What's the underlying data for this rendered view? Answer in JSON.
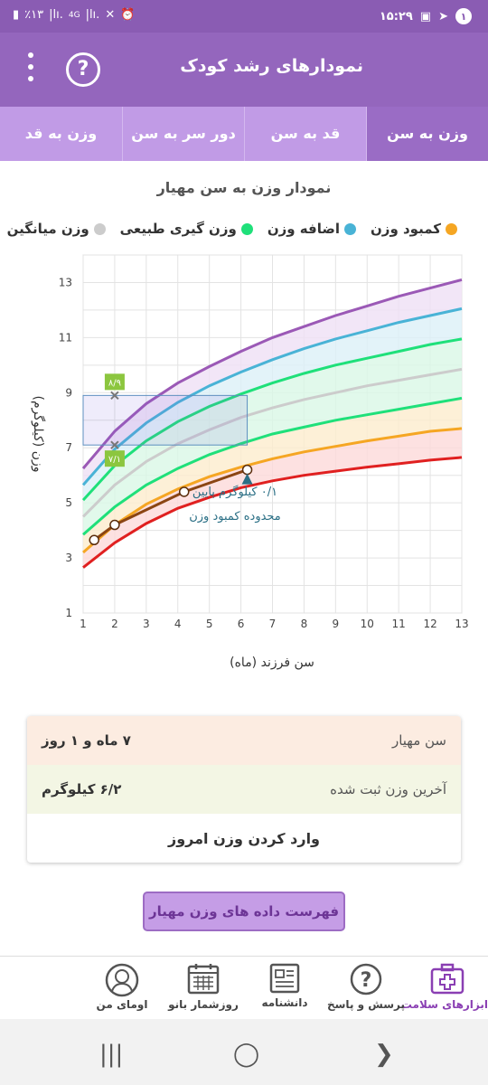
{
  "status_bar": {
    "time": "۱۵:۲۹",
    "notification_count": "۱",
    "battery": "٪۱۳",
    "network": "4G"
  },
  "app_bar": {
    "title": "نمودارهای رشد کودک",
    "help_symbol": "?"
  },
  "tabs": [
    {
      "label": "وزن به سن",
      "active": true
    },
    {
      "label": "قد به سن",
      "active": false
    },
    {
      "label": "دور سر به سن",
      "active": false
    },
    {
      "label": "وزن به قد",
      "active": false
    }
  ],
  "chart_title": "نمودار وزن به سن مهیار",
  "legend": [
    {
      "label": "کمبود وزن",
      "color": "#f5a623"
    },
    {
      "label": "اضافه وزن",
      "color": "#49b3d6"
    },
    {
      "label": "وزن گیری طبیعی",
      "color": "#1fe07a"
    },
    {
      "label": "وزن میانگین",
      "color": "#cccccc"
    }
  ],
  "chart_data": {
    "type": "line",
    "title": "نمودار وزن به سن مهیار",
    "xlabel": "سن فرزند (ماه)",
    "ylabel": "وزن (کیلوگرم)",
    "xlim": [
      1,
      13
    ],
    "ylim": [
      1,
      14
    ],
    "x_ticks": [
      1,
      2,
      3,
      4,
      5,
      6,
      7,
      8,
      9,
      10,
      11,
      12,
      13
    ],
    "y_ticks": [
      1,
      3,
      5,
      7,
      9,
      11,
      13
    ],
    "grid": true,
    "x": [
      1,
      2,
      3,
      4,
      5,
      6,
      7,
      8,
      9,
      10,
      11,
      12,
      13
    ],
    "series": [
      {
        "color": "#e02020",
        "values": [
          2.65,
          3.55,
          4.25,
          4.8,
          5.2,
          5.55,
          5.8,
          6.0,
          6.15,
          6.3,
          6.42,
          6.55,
          6.65
        ]
      },
      {
        "color": "#f5a623",
        "values": [
          3.2,
          4.2,
          4.95,
          5.5,
          5.95,
          6.3,
          6.6,
          6.85,
          7.05,
          7.25,
          7.42,
          7.6,
          7.7
        ]
      },
      {
        "color": "#1fe07a",
        "values": [
          3.85,
          4.85,
          5.65,
          6.25,
          6.75,
          7.15,
          7.5,
          7.75,
          8.0,
          8.2,
          8.4,
          8.6,
          8.8
        ]
      },
      {
        "color": "#cccccc",
        "values": [
          4.5,
          5.65,
          6.5,
          7.15,
          7.65,
          8.1,
          8.45,
          8.75,
          9.0,
          9.25,
          9.45,
          9.65,
          9.85
        ]
      },
      {
        "color": "#1fe07a",
        "values": [
          5.1,
          6.35,
          7.25,
          7.95,
          8.5,
          8.95,
          9.35,
          9.7,
          10.0,
          10.25,
          10.5,
          10.75,
          10.95
        ]
      },
      {
        "color": "#49b3d6",
        "values": [
          5.65,
          6.95,
          7.9,
          8.65,
          9.25,
          9.75,
          10.2,
          10.6,
          10.95,
          11.25,
          11.55,
          11.8,
          12.05
        ]
      },
      {
        "color": "#9b59b6",
        "values": [
          6.25,
          7.6,
          8.6,
          9.35,
          9.95,
          10.5,
          11.0,
          11.4,
          11.8,
          12.15,
          12.5,
          12.8,
          13.1
        ]
      }
    ],
    "child_series": {
      "color": "#8b4513",
      "points": [
        [
          1.35,
          3.65
        ],
        [
          2.0,
          4.2
        ],
        [
          4.2,
          5.4
        ],
        [
          6.2,
          6.2
        ]
      ]
    },
    "selected_age": 2,
    "range_marker": {
      "low": 7.1,
      "high": 8.9,
      "low_label": "۷/۱",
      "high_label": "۸/۹"
    },
    "annotation": {
      "line1": "۰/۱ کیلوگرم پایین",
      "line2": "محدوده کمبود وزن"
    }
  },
  "info_card": {
    "age_label": "سن مهیار",
    "age_value": "۷ ماه و ۱ روز",
    "last_weight_label": "آخرین وزن ثبت شده",
    "last_weight_value": "۶/۲ کیلوگرم",
    "enter_weight_label": "وارد کردن وزن امروز"
  },
  "list_button_label": "فهرست داده های وزن مهیار",
  "bottom_nav": [
    {
      "label": "ابزارهای سلامت",
      "icon": "medical-kit-icon",
      "active": true
    },
    {
      "label": "پرسش و پاسخ",
      "icon": "question-bubble-icon",
      "active": false
    },
    {
      "label": "دانشنامه",
      "icon": "newspaper-icon",
      "active": false
    },
    {
      "label": "روزشمار بانو",
      "icon": "calendar-icon",
      "active": false
    },
    {
      "label": "اومای من",
      "icon": "profile-icon",
      "active": false
    }
  ]
}
